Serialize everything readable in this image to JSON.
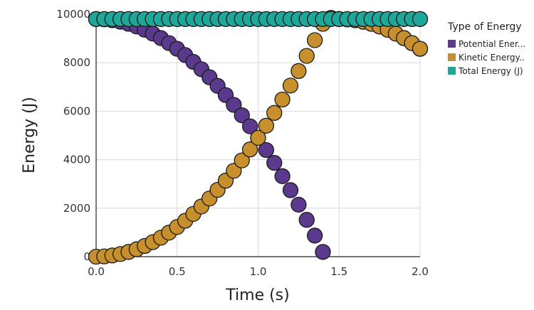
{
  "chart_data": {
    "type": "scatter",
    "xlabel": "Time (s)",
    "ylabel": "Energy (J)",
    "xlim": [
      0,
      2
    ],
    "ylim": [
      0,
      10000
    ],
    "x_ticks": [
      0.0,
      0.5,
      1.0,
      1.5,
      2.0
    ],
    "x_tick_labels": [
      "0.0",
      "0.5",
      "1.0",
      "1.5",
      "2.0"
    ],
    "y_ticks": [
      0,
      2000,
      4000,
      6000,
      8000,
      10000
    ],
    "y_tick_labels": [
      "0",
      "2000",
      "4000",
      "6000",
      "8000",
      "10000"
    ],
    "grid": true,
    "legend": {
      "title": "Type of Energy",
      "placement": "right",
      "entries": [
        "Potential Ener...",
        "Kinetic Energy..",
        "Total Energy (J)"
      ]
    },
    "series": [
      {
        "label": "Potential Ener...",
        "color": "#5b3a8e",
        "x": [
          0.0,
          0.05,
          0.1,
          0.15,
          0.2,
          0.25,
          0.3,
          0.35,
          0.4,
          0.45,
          0.5,
          0.55,
          0.6,
          0.65,
          0.7,
          0.75,
          0.8,
          0.85,
          0.9,
          0.95,
          1.0,
          1.05,
          1.1,
          1.15,
          1.2,
          1.25,
          1.3,
          1.35,
          1.4,
          1.45,
          1.5,
          1.55,
          1.6,
          1.65,
          1.7,
          1.75,
          1.8,
          1.85,
          1.9,
          1.95,
          2.0
        ],
        "y": [
          9800,
          9788,
          9751,
          9690,
          9604,
          9494,
          9359,
          9200,
          9016,
          8808,
          8575,
          8318,
          8036,
          7730,
          7399,
          7044,
          6664,
          6260,
          5831,
          5378,
          4900,
          4398,
          3871,
          3320,
          2744,
          2144,
          1519,
          870,
          196,
          9849,
          9800,
          9788,
          9751,
          9690,
          9604,
          9494,
          9359,
          9200,
          9016,
          8808,
          8575
        ]
      },
      {
        "label": "Kinetic Energy..",
        "color": "#c8902c",
        "x": [
          0.0,
          0.05,
          0.1,
          0.15,
          0.2,
          0.25,
          0.3,
          0.35,
          0.4,
          0.45,
          0.5,
          0.55,
          0.6,
          0.65,
          0.7,
          0.75,
          0.8,
          0.85,
          0.9,
          0.95,
          1.0,
          1.05,
          1.1,
          1.15,
          1.2,
          1.25,
          1.3,
          1.35,
          1.4,
          1.45,
          1.5,
          1.55,
          1.6,
          1.65,
          1.7,
          1.75,
          1.8,
          1.85,
          1.9,
          1.95,
          2.0
        ],
        "y": [
          0,
          12,
          49,
          110,
          196,
          306,
          441,
          600,
          784,
          992,
          1225,
          1482,
          1764,
          2070,
          2401,
          2756,
          3136,
          3540,
          3969,
          4422,
          4900,
          5402,
          5929,
          6480,
          7056,
          7656,
          8281,
          8930,
          9604,
          9849,
          9800,
          9788,
          9751,
          9690,
          9604,
          9494,
          9359,
          9200,
          9016,
          8808,
          8575
        ]
      },
      {
        "label": "Total Energy (J)",
        "color": "#1fa79a",
        "x": [
          0.0,
          0.05,
          0.1,
          0.15,
          0.2,
          0.25,
          0.3,
          0.35,
          0.4,
          0.45,
          0.5,
          0.55,
          0.6,
          0.65,
          0.7,
          0.75,
          0.8,
          0.85,
          0.9,
          0.95,
          1.0,
          1.05,
          1.1,
          1.15,
          1.2,
          1.25,
          1.3,
          1.35,
          1.4,
          1.45,
          1.5,
          1.55,
          1.6,
          1.65,
          1.7,
          1.75,
          1.8,
          1.85,
          1.9,
          1.95,
          2.0
        ],
        "y": [
          9800,
          9800,
          9800,
          9800,
          9800,
          9800,
          9800,
          9800,
          9800,
          9800,
          9800,
          9800,
          9800,
          9800,
          9800,
          9800,
          9800,
          9800,
          9800,
          9800,
          9800,
          9800,
          9800,
          9800,
          9800,
          9800,
          9800,
          9800,
          9800,
          9800,
          9800,
          9800,
          9800,
          9800,
          9800,
          9800,
          9800,
          9800,
          9800,
          9800,
          9800
        ]
      }
    ]
  }
}
